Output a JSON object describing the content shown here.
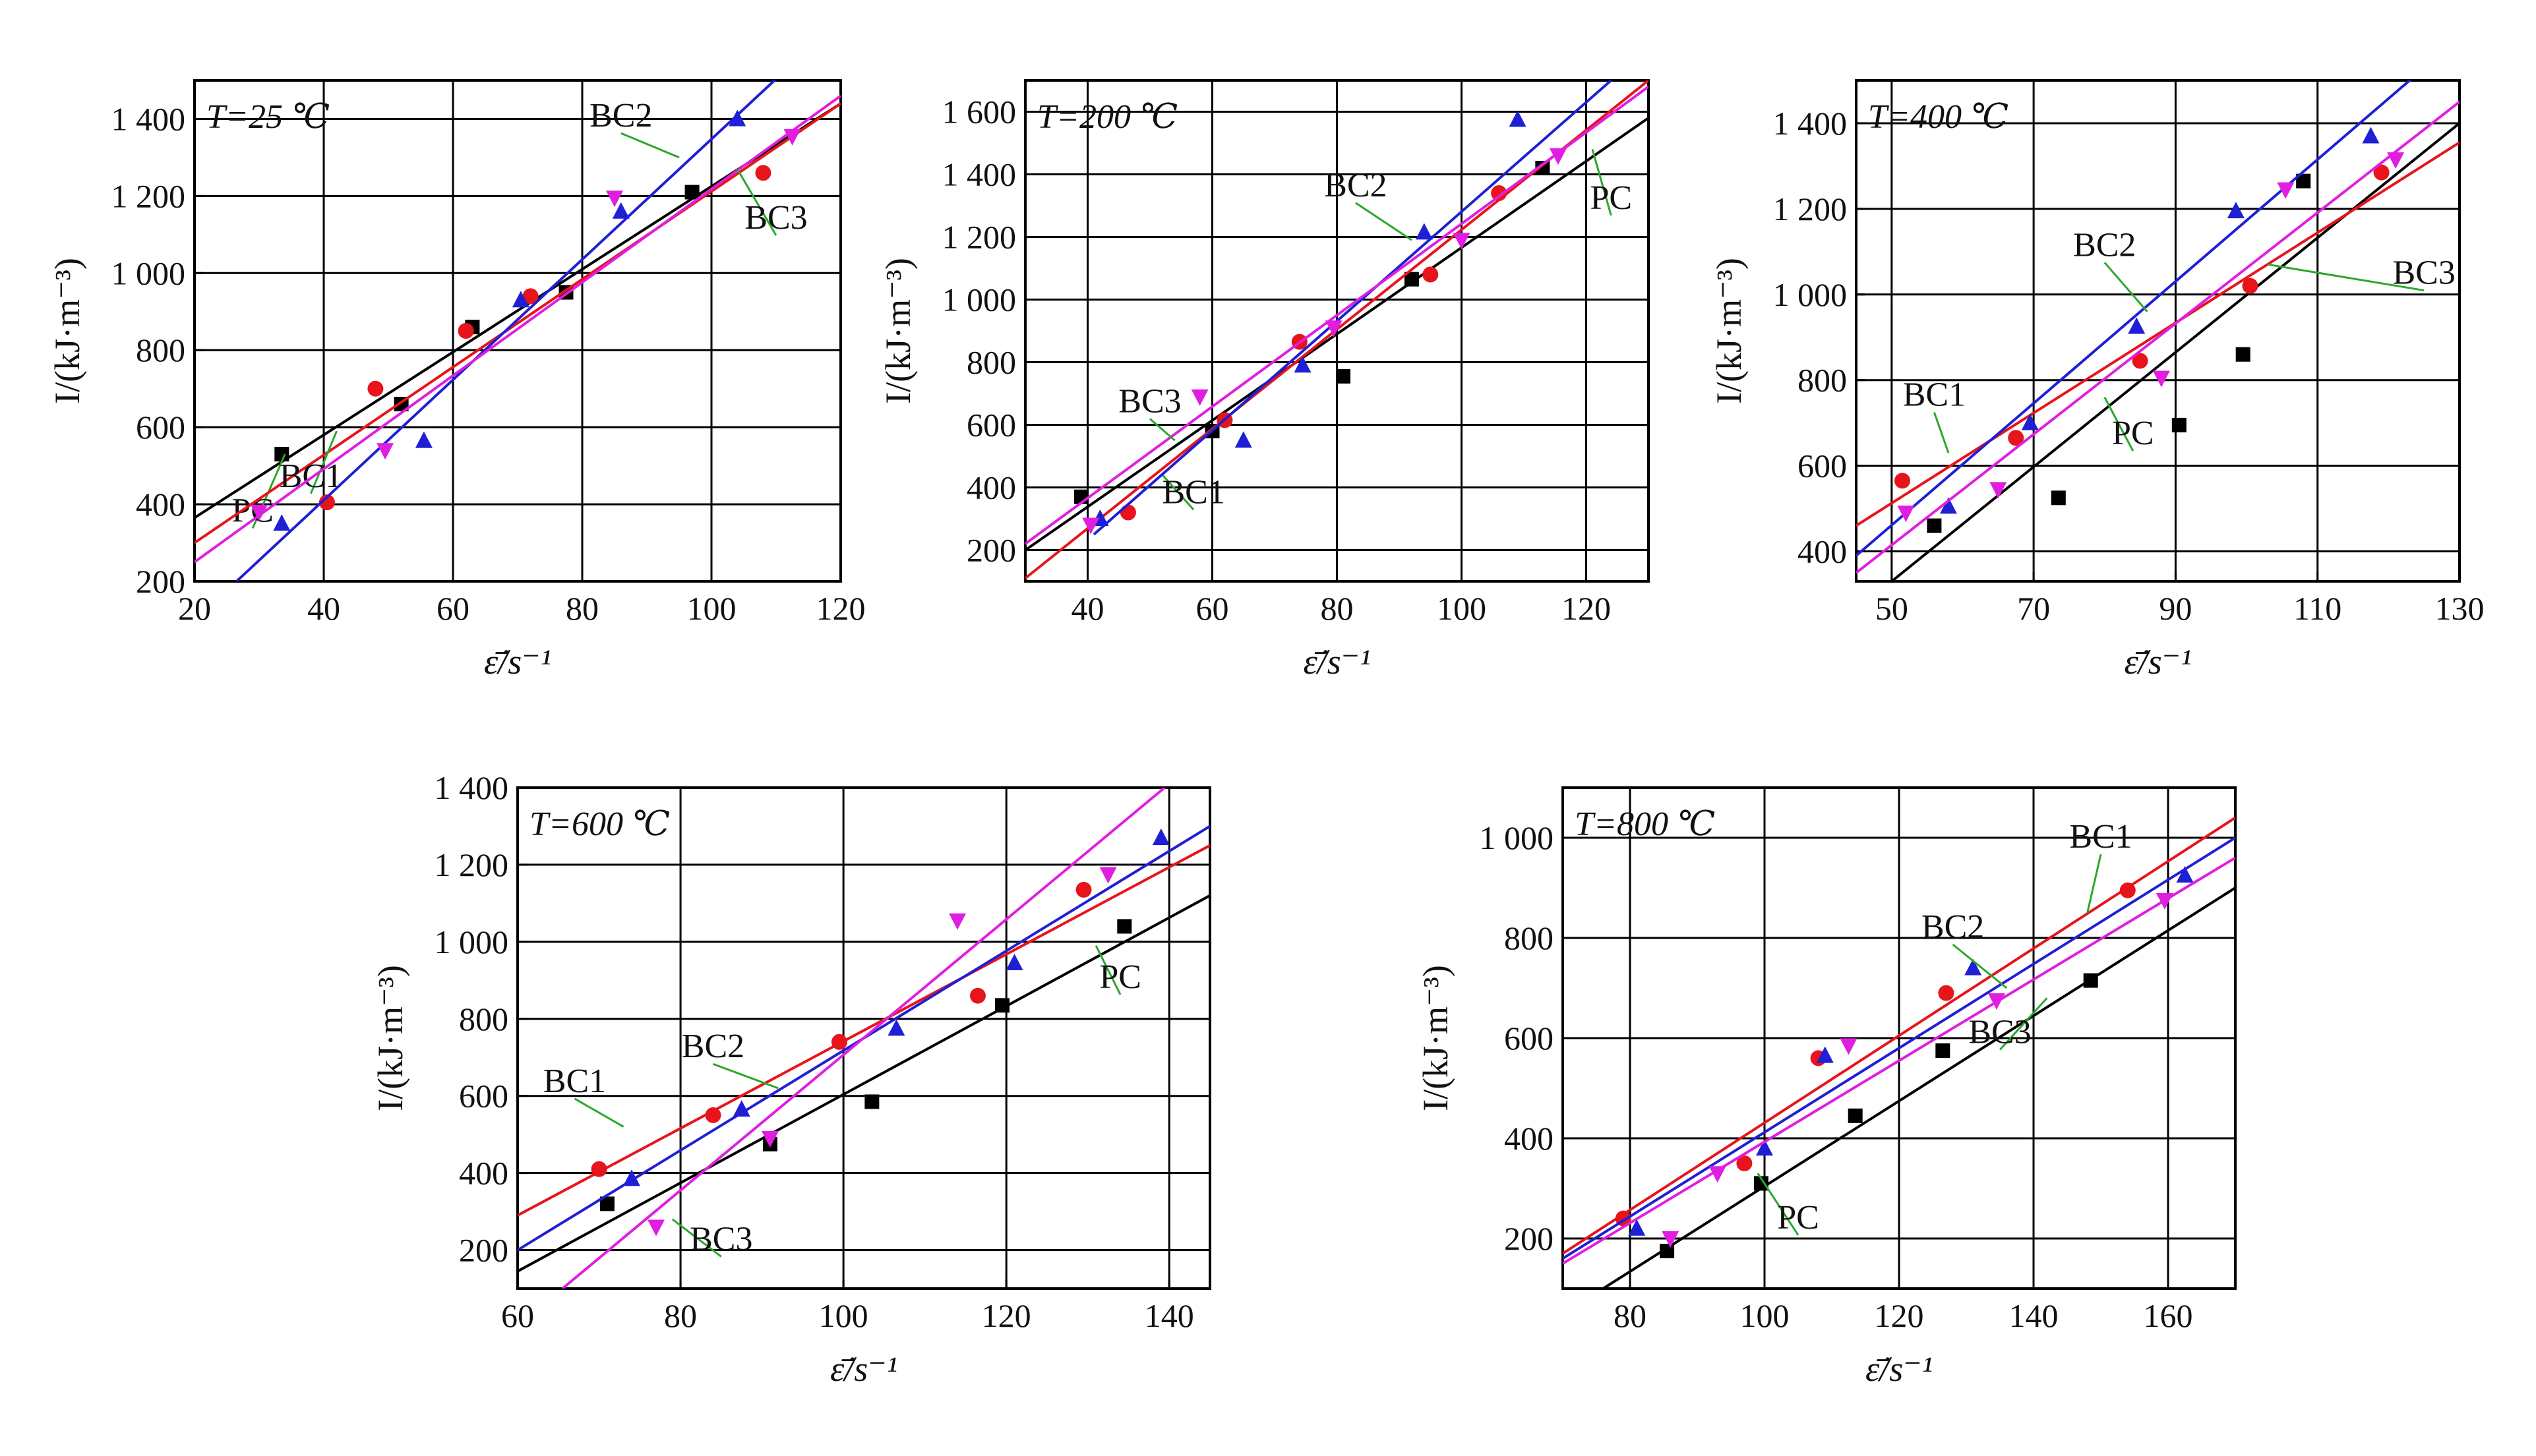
{
  "colors": {
    "PC": "#000000",
    "BC1": "#e8141b",
    "BC2": "#1f1fd6",
    "BC3": "#e01ee0",
    "leader": "#2aa82a"
  },
  "markers": {
    "PC": "square",
    "BC1": "circle",
    "BC2": "triangle-up",
    "BC3": "triangle-down"
  },
  "chart_data": [
    {
      "type": "scatter",
      "title": "T=25 ℃",
      "xlabel": "ε̄̇/s⁻¹",
      "ylabel": "I/(kJ·m⁻³)",
      "xlim": [
        20,
        120
      ],
      "ylim": [
        200,
        1500
      ],
      "xticks": [
        20,
        40,
        60,
        80,
        100,
        120
      ],
      "xtick_labels": [
        "20",
        "40",
        "60",
        "80",
        "100",
        "120"
      ],
      "yticks": [
        200,
        400,
        600,
        800,
        1000,
        1200,
        1400
      ],
      "ytick_labels": [
        "200",
        "400",
        "600",
        "800",
        "1 000",
        "1 200",
        "1 400"
      ],
      "grid": true,
      "series": [
        {
          "name": "PC",
          "points": [
            [
              33.5,
              530
            ],
            [
              52,
              660
            ],
            [
              63,
              860
            ],
            [
              77.5,
              950
            ],
            [
              97,
              1210
            ]
          ],
          "fit": [
            [
              20,
              365
            ],
            [
              120,
              1440
            ]
          ],
          "label_at": [
            29,
            355
          ],
          "leader_to": [
            34,
            530
          ]
        },
        {
          "name": "BC1",
          "points": [
            [
              40.5,
              405
            ],
            [
              48,
              700
            ],
            [
              62,
              850
            ],
            [
              72,
              940
            ],
            [
              108,
              1260
            ]
          ],
          "fit": [
            [
              20,
              300
            ],
            [
              120,
              1440
            ]
          ],
          "label_at": [
            38,
            445
          ],
          "leader_to": [
            42,
            590
          ]
        },
        {
          "name": "BC2",
          "points": [
            [
              33.5,
              350
            ],
            [
              55.5,
              565
            ],
            [
              70.5,
              930
            ],
            [
              86,
              1160
            ],
            [
              104,
              1400
            ]
          ],
          "fit": [
            [
              26.5,
              200
            ],
            [
              120,
              1660
            ]
          ],
          "label_at": [
            86,
            1380
          ],
          "leader_to": [
            95,
            1300
          ]
        },
        {
          "name": "BC3",
          "points": [
            [
              30,
              380
            ],
            [
              49.5,
              540
            ],
            [
              85,
              1195
            ],
            [
              112.5,
              1355
            ]
          ],
          "fit": [
            [
              20,
              250
            ],
            [
              120,
              1460
            ]
          ],
          "label_at": [
            110,
            1115
          ],
          "leader_to": [
            104,
            1270
          ]
        }
      ]
    },
    {
      "type": "scatter",
      "title": "T=200 ℃",
      "xlabel": "ε̄̇/s⁻¹",
      "ylabel": "I/(kJ·m⁻³)",
      "xlim": [
        30,
        130
      ],
      "ylim": [
        100,
        1700
      ],
      "xticks": [
        40,
        60,
        80,
        100,
        120
      ],
      "xtick_labels": [
        "40",
        "60",
        "80",
        "100",
        "120"
      ],
      "yticks": [
        200,
        400,
        600,
        800,
        1000,
        1200,
        1400,
        1600
      ],
      "ytick_labels": [
        "200",
        "400",
        "600",
        "800",
        "1 000",
        "1 200",
        "1 400",
        "1 600"
      ],
      "grid": true,
      "series": [
        {
          "name": "PC",
          "points": [
            [
              39,
              370
            ],
            [
              60,
              580
            ],
            [
              81,
              755
            ],
            [
              92,
              1065
            ],
            [
              113,
              1420
            ]
          ],
          "fit": [
            [
              30,
              200
            ],
            [
              130,
              1580
            ]
          ],
          "label_at": [
            124,
            1290
          ],
          "leader_to": [
            121,
            1480
          ]
        },
        {
          "name": "BC1",
          "points": [
            [
              46.5,
              320
            ],
            [
              62,
              615
            ],
            [
              74,
              865
            ],
            [
              95,
              1080
            ],
            [
              106,
              1340
            ]
          ],
          "fit": [
            [
              30,
              110
            ],
            [
              130,
              1700
            ]
          ],
          "label_at": [
            57,
            350
          ],
          "leader_to": [
            52,
            440
          ]
        },
        {
          "name": "BC2",
          "points": [
            [
              42,
              300
            ],
            [
              65,
              550
            ],
            [
              74.5,
              790
            ],
            [
              94,
              1215
            ],
            [
              109,
              1575
            ]
          ],
          "fit": [
            [
              41,
              250
            ],
            [
              124,
              1700
            ]
          ],
          "label_at": [
            83,
            1330
          ],
          "leader_to": [
            92,
            1190
          ]
        },
        {
          "name": "BC3",
          "points": [
            [
              40.5,
              280
            ],
            [
              58,
              690
            ],
            [
              79.5,
              910
            ],
            [
              100,
              1190
            ],
            [
              115.5,
              1460
            ]
          ],
          "fit": [
            [
              30,
              220
            ],
            [
              130,
              1680
            ]
          ],
          "label_at": [
            50,
            640
          ],
          "leader_to": [
            54,
            550
          ]
        }
      ]
    },
    {
      "type": "scatter",
      "title": "T=400 ℃",
      "xlabel": "ε̄̇/s⁻¹",
      "ylabel": "I/(kJ·m⁻³)",
      "xlim": [
        45,
        130
      ],
      "ylim": [
        330,
        1500
      ],
      "xticks": [
        50,
        70,
        90,
        110,
        130
      ],
      "xtick_labels": [
        "50",
        "70",
        "90",
        "110",
        "130"
      ],
      "yticks": [
        400,
        600,
        800,
        1000,
        1200,
        1400
      ],
      "ytick_labels": [
        "400",
        "600",
        "800",
        "1 000",
        "1 200",
        "1 400"
      ],
      "grid": true,
      "series": [
        {
          "name": "PC",
          "points": [
            [
              56,
              460
            ],
            [
              73.5,
              525
            ],
            [
              90.5,
              695
            ],
            [
              99.5,
              860
            ],
            [
              108,
              1265
            ]
          ],
          "fit": [
            [
              50,
              330
            ],
            [
              130,
              1400
            ]
          ],
          "label_at": [
            84,
            650
          ],
          "leader_to": [
            80,
            760
          ]
        },
        {
          "name": "BC1",
          "points": [
            [
              51.5,
              565
            ],
            [
              67.5,
              665
            ],
            [
              85,
              845
            ],
            [
              100.5,
              1020
            ],
            [
              119,
              1285
            ]
          ],
          "fit": [
            [
              45,
              460
            ],
            [
              130,
              1355
            ]
          ],
          "label_at": [
            56,
            740
          ],
          "leader_to": [
            58,
            630
          ]
        },
        {
          "name": "BC2",
          "points": [
            [
              58,
              505
            ],
            [
              69.5,
              700
            ],
            [
              84.5,
              925
            ],
            [
              98.5,
              1195
            ],
            [
              117.5,
              1370
            ]
          ],
          "fit": [
            [
              45,
              390
            ],
            [
              130,
              1600
            ]
          ],
          "label_at": [
            80,
            1090
          ],
          "leader_to": [
            86,
            960
          ]
        },
        {
          "name": "BC3",
          "points": [
            [
              52,
              490
            ],
            [
              65,
              545
            ],
            [
              88,
              805
            ],
            [
              105.5,
              1245
            ],
            [
              121,
              1315
            ]
          ],
          "fit": [
            [
              45,
              350
            ],
            [
              130,
              1450
            ]
          ],
          "label_at": [
            125,
            1025
          ],
          "leader_to": [
            103,
            1070
          ]
        }
      ]
    },
    {
      "type": "scatter",
      "title": "T=600 ℃",
      "xlabel": "ε̄̇/s⁻¹",
      "ylabel": "I/(kJ·m⁻³)",
      "xlim": [
        60,
        145
      ],
      "ylim": [
        100,
        1400
      ],
      "xticks": [
        60,
        80,
        100,
        120,
        140
      ],
      "xtick_labels": [
        "60",
        "80",
        "100",
        "120",
        "140"
      ],
      "yticks": [
        200,
        400,
        600,
        800,
        1000,
        1200,
        1400
      ],
      "ytick_labels": [
        "200",
        "400",
        "600",
        "800",
        "1 000",
        "1 200",
        "1 400"
      ],
      "grid": true,
      "series": [
        {
          "name": "PC",
          "points": [
            [
              71,
              320
            ],
            [
              91,
              475
            ],
            [
              103.5,
              585
            ],
            [
              119.5,
              835
            ],
            [
              134.5,
              1040
            ]
          ],
          "fit": [
            [
              60,
              145
            ],
            [
              145,
              1120
            ]
          ],
          "label_at": [
            134,
            880
          ],
          "leader_to": [
            131,
            990
          ]
        },
        {
          "name": "BC1",
          "points": [
            [
              70,
              410
            ],
            [
              84,
              550
            ],
            [
              99.5,
              740
            ],
            [
              116.5,
              860
            ],
            [
              129.5,
              1135
            ]
          ],
          "fit": [
            [
              60,
              290
            ],
            [
              145,
              1250
            ]
          ],
          "label_at": [
            67,
            610
          ],
          "leader_to": [
            73,
            520
          ]
        },
        {
          "name": "BC2",
          "points": [
            [
              74,
              385
            ],
            [
              87.5,
              565
            ],
            [
              106.5,
              775
            ],
            [
              121,
              945
            ],
            [
              139,
              1270
            ]
          ],
          "fit": [
            [
              60,
              200
            ],
            [
              145,
              1300
            ]
          ],
          "label_at": [
            84,
            700
          ],
          "leader_to": [
            92,
            620
          ]
        },
        {
          "name": "BC3",
          "points": [
            [
              77,
              260
            ],
            [
              91,
              490
            ],
            [
              114,
              1055
            ],
            [
              132.5,
              1175
            ]
          ],
          "fit": [
            [
              65.5,
              100
            ],
            [
              140,
              1410
            ]
          ],
          "label_at": [
            85,
            200
          ],
          "leader_to": [
            79,
            280
          ]
        }
      ]
    },
    {
      "type": "scatter",
      "title": "T=800 ℃",
      "xlabel": "ε̄̇/s⁻¹",
      "ylabel": "I/(kJ·m⁻³)",
      "xlim": [
        70,
        170
      ],
      "ylim": [
        100,
        1100
      ],
      "xticks": [
        80,
        100,
        120,
        140,
        160
      ],
      "xtick_labels": [
        "80",
        "100",
        "120",
        "140",
        "160"
      ],
      "yticks": [
        200,
        400,
        600,
        800,
        1000
      ],
      "ytick_labels": [
        "200",
        "400",
        "600",
        "800",
        "1 000"
      ],
      "grid": true,
      "series": [
        {
          "name": "PC",
          "points": [
            [
              85.5,
              175
            ],
            [
              99.5,
              310
            ],
            [
              113.5,
              445
            ],
            [
              126.5,
              575
            ],
            [
              148.5,
              715
            ]
          ],
          "fit": [
            [
              76,
              100
            ],
            [
              170,
              900
            ]
          ],
          "label_at": [
            105,
            220
          ],
          "leader_to": [
            99,
            330
          ]
        },
        {
          "name": "BC1",
          "points": [
            [
              79,
              240
            ],
            [
              97,
              350
            ],
            [
              108,
              560
            ],
            [
              127,
              690
            ],
            [
              154,
              895
            ]
          ],
          "fit": [
            [
              70,
              170
            ],
            [
              170,
              1040
            ]
          ],
          "label_at": [
            150,
            980
          ],
          "leader_to": [
            148,
            850
          ]
        },
        {
          "name": "BC2",
          "points": [
            [
              81,
              220
            ],
            [
              100,
              380
            ],
            [
              109,
              565
            ],
            [
              131,
              740
            ],
            [
              162.5,
              925
            ]
          ],
          "fit": [
            [
              70,
              160
            ],
            [
              170,
              1000
            ]
          ],
          "label_at": [
            128,
            800
          ],
          "leader_to": [
            136,
            700
          ]
        },
        {
          "name": "BC3",
          "points": [
            [
              86,
              200
            ],
            [
              93,
              330
            ],
            [
              112.5,
              585
            ],
            [
              134.5,
              675
            ],
            [
              159.5,
              875
            ]
          ],
          "fit": [
            [
              70,
              150
            ],
            [
              170,
              960
            ]
          ],
          "label_at": [
            135,
            590
          ],
          "leader_to": [
            142,
            680
          ]
        }
      ]
    }
  ]
}
